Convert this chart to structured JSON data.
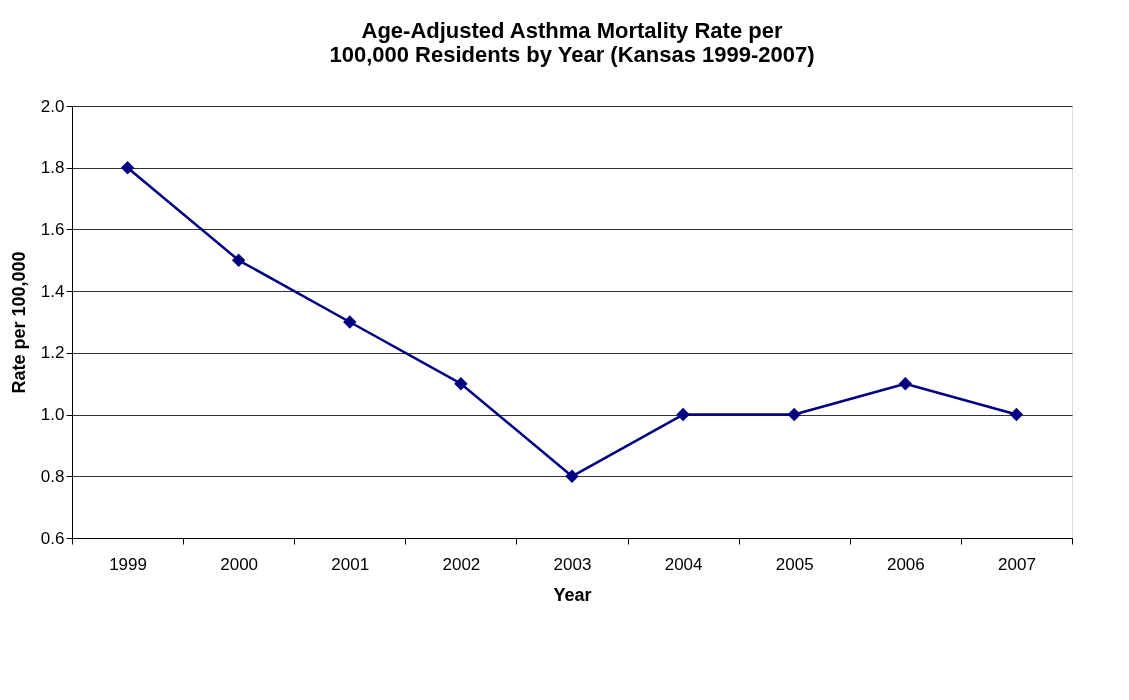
{
  "chart_data": {
    "type": "line",
    "title": "Age-Adjusted Asthma Mortality Rate per 100,000 Residents by Year (Kansas 1999-2007)",
    "xlabel": "Year",
    "ylabel": "Rate per 100,000",
    "categories": [
      "1999",
      "2000",
      "2001",
      "2002",
      "2003",
      "2004",
      "2005",
      "2006",
      "2007"
    ],
    "series": [
      {
        "color": "#000080",
        "values": [
          1.8,
          1.5,
          1.3,
          1.1,
          0.8,
          1.0,
          1.0,
          1.1,
          1.0
        ]
      }
    ],
    "ylim": [
      0.6,
      2.0
    ],
    "yticks": [
      {
        "value": 0.6,
        "label": "0.6"
      },
      {
        "value": 0.8,
        "label": "0.8"
      },
      {
        "value": 1.0,
        "label": "1.0"
      },
      {
        "value": 1.2,
        "label": "1.2"
      },
      {
        "value": 1.4,
        "label": "1.4"
      },
      {
        "value": 1.6,
        "label": "1.6"
      },
      {
        "value": 1.8,
        "label": "1.8"
      },
      {
        "value": 2.0,
        "label": "2.0"
      }
    ],
    "grid": "y",
    "marker": "diamond",
    "line_style": "solid"
  }
}
